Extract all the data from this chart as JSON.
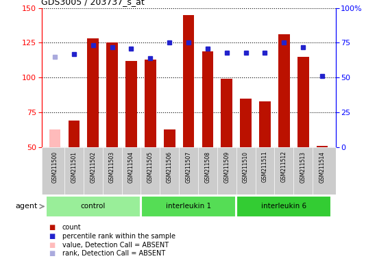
{
  "title": "GDS3005 / 203737_s_at",
  "samples": [
    "GSM211500",
    "GSM211501",
    "GSM211502",
    "GSM211503",
    "GSM211504",
    "GSM211505",
    "GSM211506",
    "GSM211507",
    "GSM211508",
    "GSM211509",
    "GSM211510",
    "GSM211511",
    "GSM211512",
    "GSM211513",
    "GSM211514"
  ],
  "counts": [
    63,
    69,
    128,
    125,
    112,
    113,
    63,
    145,
    119,
    99,
    85,
    83,
    131,
    115,
    51
  ],
  "absent_count_indices": [
    0
  ],
  "percentile_ranks_by_index": {
    "1": 67,
    "2": 73,
    "3": 72,
    "4": 71,
    "5": 64,
    "6": 75,
    "7": 75,
    "8": 71,
    "9": 68,
    "10": 68,
    "11": 68,
    "12": 75,
    "13": 72,
    "14": 51
  },
  "absent_rank_by_index": {
    "0": 65
  },
  "groups": [
    {
      "label": "control",
      "start": 0,
      "end": 4,
      "color": "#99ee99"
    },
    {
      "label": "interleukin 1",
      "start": 5,
      "end": 9,
      "color": "#55dd55"
    },
    {
      "label": "interleukin 6",
      "start": 10,
      "end": 14,
      "color": "#33cc33"
    }
  ],
  "ylim_left": [
    50,
    150
  ],
  "ylim_right": [
    0,
    100
  ],
  "yticks_left": [
    50,
    75,
    100,
    125,
    150
  ],
  "yticks_right": [
    0,
    25,
    50,
    75,
    100
  ],
  "ytick_right_labels": [
    "0",
    "25",
    "50",
    "75",
    "100%"
  ],
  "bar_color": "#bb1100",
  "absent_bar_color": "#ffbbbb",
  "rank_color": "#2222cc",
  "absent_rank_color": "#aaaadd",
  "sample_bg_color": "#cccccc",
  "plot_bg": "#ffffff",
  "legend_items": [
    {
      "label": "count",
      "color": "#bb1100"
    },
    {
      "label": "percentile rank within the sample",
      "color": "#2222cc"
    },
    {
      "label": "value, Detection Call = ABSENT",
      "color": "#ffbbbb"
    },
    {
      "label": "rank, Detection Call = ABSENT",
      "color": "#aaaadd"
    }
  ]
}
